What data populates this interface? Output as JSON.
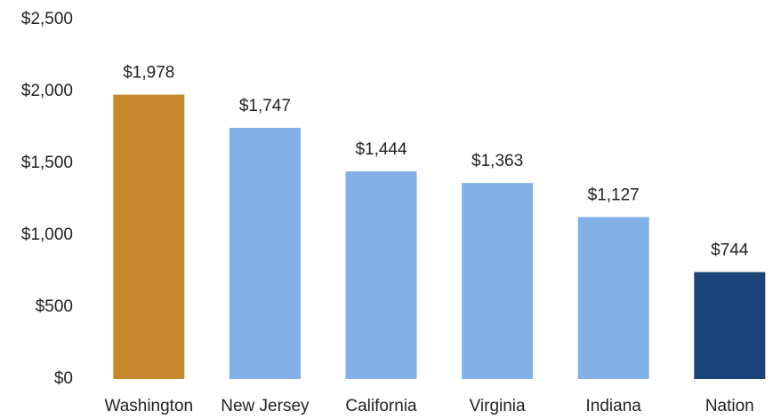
{
  "chart_data": {
    "type": "bar",
    "categories": [
      "Washington",
      "New Jersey",
      "California",
      "Virginia",
      "Indiana",
      "Nation"
    ],
    "values": [
      1978,
      1747,
      1444,
      1363,
      1127,
      744
    ],
    "value_labels": [
      "$1,978",
      "$1,747",
      "$1,444",
      "$1,363",
      "$1,127",
      "$744"
    ],
    "colors": [
      "#c8892e",
      "#83b0e6",
      "#83b0e6",
      "#83b0e6",
      "#83b0e6",
      "#1a4477"
    ],
    "ylim": [
      0,
      2500
    ],
    "yticks": [
      {
        "value": 0,
        "label": "$0"
      },
      {
        "value": 500,
        "label": "$500"
      },
      {
        "value": 1000,
        "label": "$1,000"
      },
      {
        "value": 1500,
        "label": "$1,500"
      },
      {
        "value": 2000,
        "label": "$2,000"
      },
      {
        "value": 2500,
        "label": "$2,500"
      }
    ],
    "grid": false
  }
}
